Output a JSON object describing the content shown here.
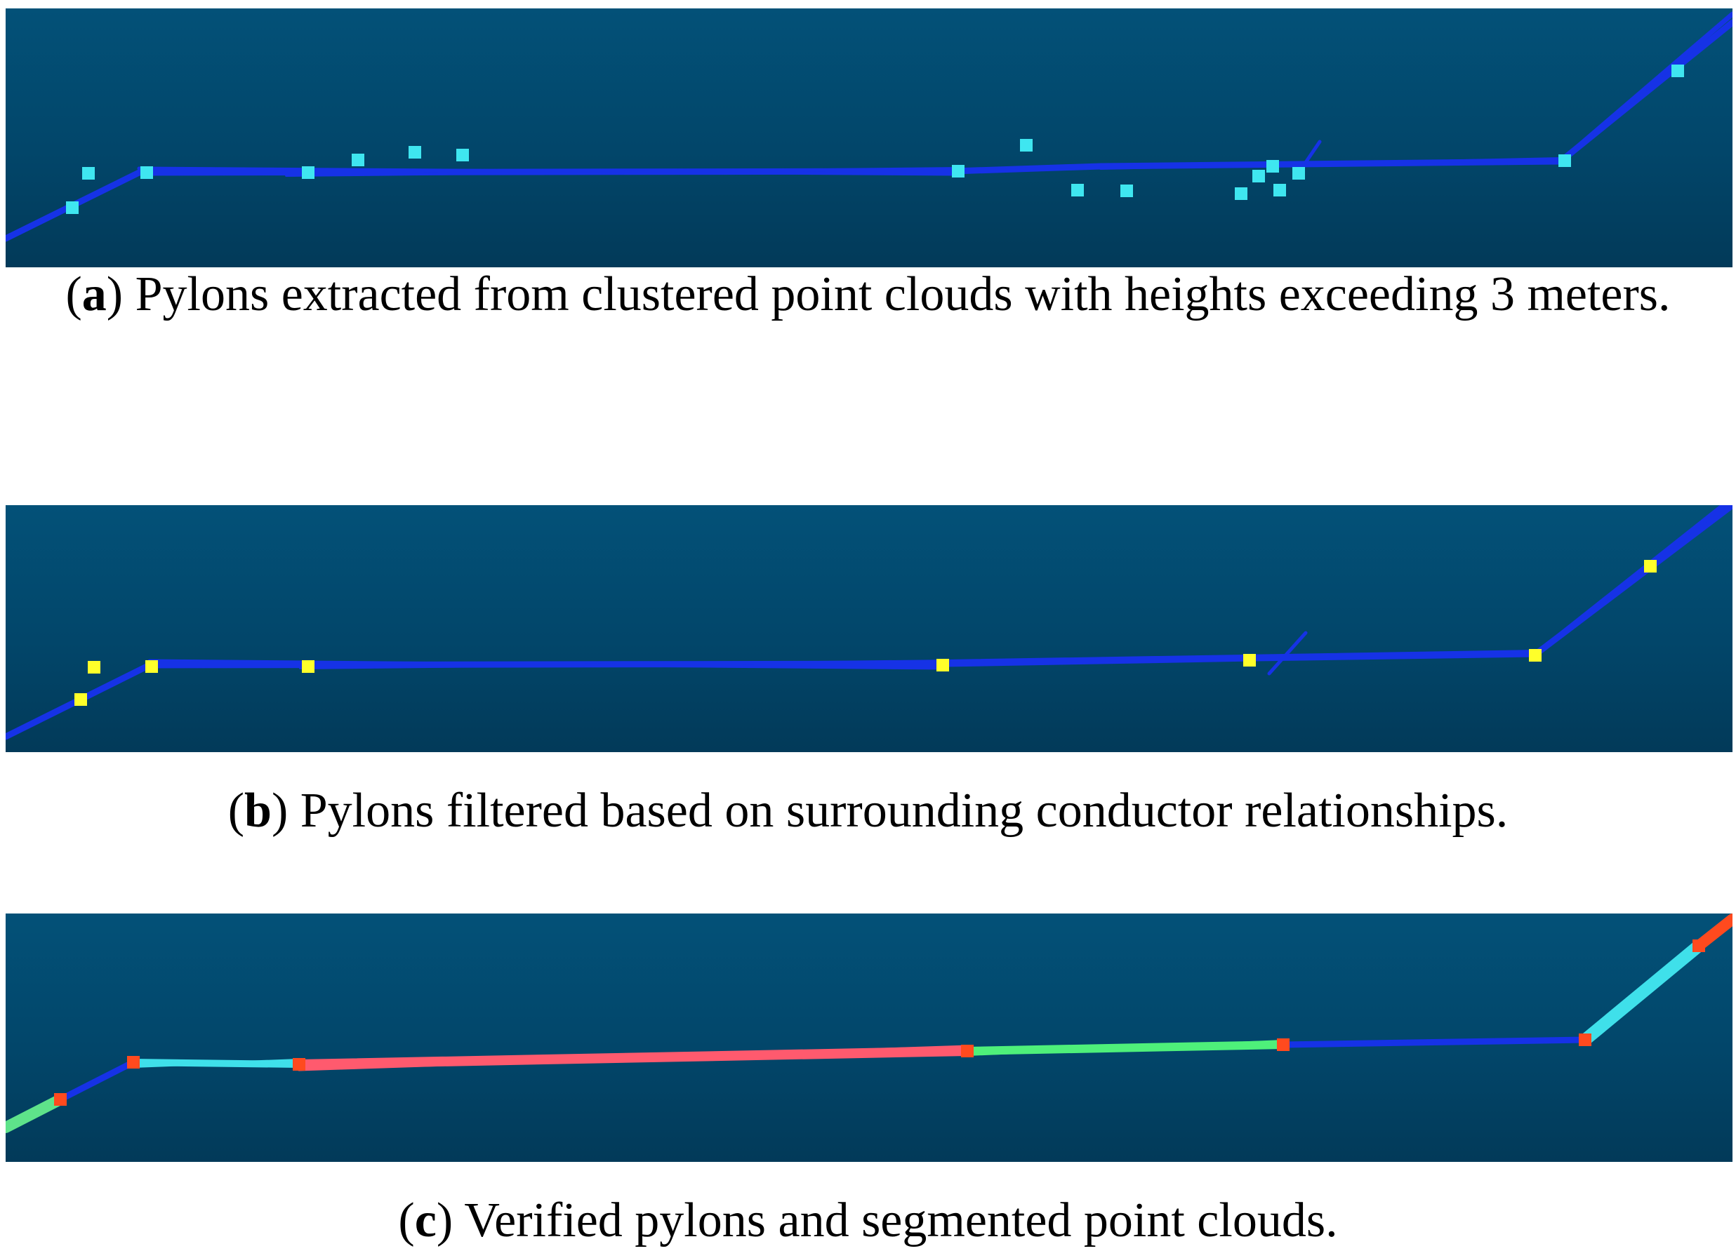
{
  "figures": [
    {
      "letter": "a",
      "caption": "Pylons extracted from clustered point clouds with heights exceeding 3 meters.",
      "marker_color": "#3fe6f0",
      "line_color": "#1632e6"
    },
    {
      "letter": "b",
      "caption": "Pylons filtered based on surrounding conductor relationships.",
      "marker_color": "#ffff2a",
      "line_color": "#1632e6"
    },
    {
      "letter": "c",
      "caption": "Verified pylons and segmented point clouds.",
      "marker_color": "#ff4a1e",
      "segment_colors": [
        "#5ee38a",
        "#3fe0ea",
        "#ff5a6e",
        "#4ef07a",
        "#1632e6",
        "#3fe0ea",
        "#ff4a1e"
      ]
    }
  ]
}
